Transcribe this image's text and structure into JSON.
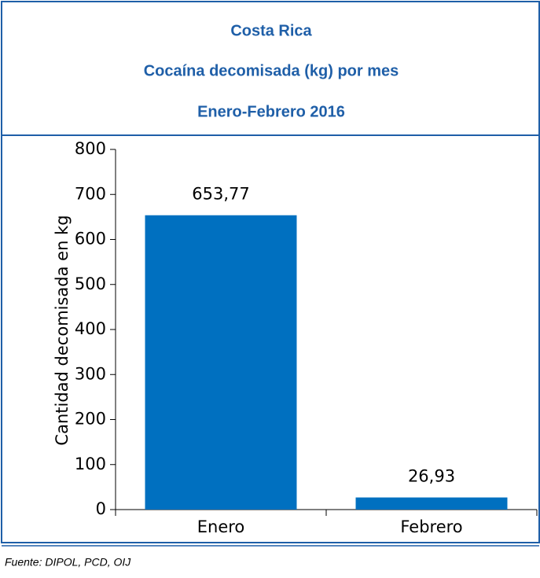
{
  "chart_data": {
    "type": "bar",
    "title": "Costa Rica",
    "subtitle": "Cocaína decomisada (kg) por mes",
    "period": "Enero-Febrero 2016",
    "ylabel": "Cantidad decomisada en kg",
    "categories": [
      "Enero",
      "Febrero"
    ],
    "values": [
      653.77,
      26.93
    ],
    "value_labels": [
      "653,77",
      "26,93"
    ],
    "color": "#0070c0",
    "ylim": [
      0,
      800
    ],
    "yticks": [
      0,
      100,
      200,
      300,
      400,
      500,
      600,
      700,
      800
    ],
    "grid": false,
    "source": "Fuente: DIPOL, PCD, OIJ"
  }
}
